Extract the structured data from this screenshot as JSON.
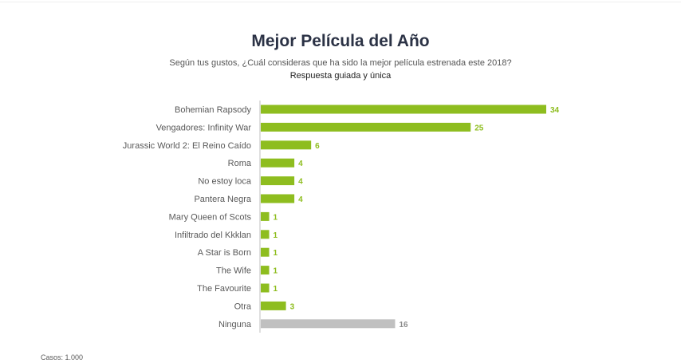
{
  "chart_data": {
    "type": "bar",
    "orientation": "horizontal",
    "title": "Mejor Película del Año",
    "subtitle": "Según tus gustos, ¿Cuál consideras que ha sido la mejor película estrenada este 2018?",
    "note": "Respuesta guiada y única",
    "categories": [
      "Bohemian Rapsody",
      "Vengadores: Infinity War",
      "Jurassic World 2: El Reino Caído",
      "Roma",
      "No estoy loca",
      "Pantera Negra",
      "Mary Queen of Scots",
      "Infiltrado del Kkklan",
      "A Star is Born",
      "The Wife",
      "The Favourite",
      "Otra",
      "Ninguna"
    ],
    "values": [
      34,
      25,
      6,
      4,
      4,
      4,
      1,
      1,
      1,
      1,
      1,
      3,
      16
    ],
    "colors": {
      "bar": "#8ebd1f",
      "bar_none": "#c0c0c0",
      "label": "#8ebd1f",
      "label_none": "#8c8c8c"
    },
    "xlim": [
      0,
      34
    ],
    "grid": false,
    "legend": "none"
  },
  "footer": "Casos: 1.000"
}
